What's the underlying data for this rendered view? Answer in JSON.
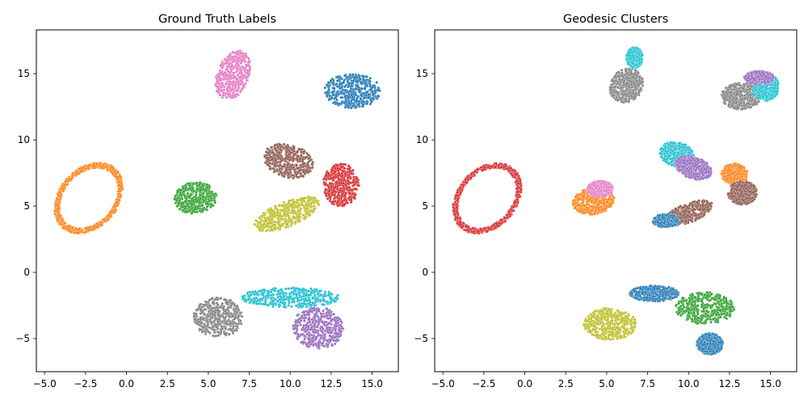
{
  "chart_data": [
    {
      "type": "scatter",
      "title": "Ground Truth Labels",
      "xlabel": "",
      "ylabel": "",
      "xlim": [
        -5.5,
        16.6
      ],
      "ylim": [
        -7.5,
        18.3
      ],
      "xticks": [
        -5.0,
        -2.5,
        0.0,
        2.5,
        5.0,
        7.5,
        10.0,
        12.5,
        15.0
      ],
      "yticks": [
        -5,
        0,
        5,
        10,
        15
      ],
      "xtick_labels": [
        "−5.0",
        "−2.5",
        "0.0",
        "2.5",
        "5.0",
        "7.5",
        "10.0",
        "12.5",
        "15.0"
      ],
      "ytick_labels": [
        "−5",
        "0",
        "5",
        "10",
        "15"
      ],
      "grid": false,
      "legend": "none",
      "clusters": [
        {
          "shape": "ring",
          "cx": -2.3,
          "cy": 5.6,
          "rx": 1.9,
          "ry": 2.8,
          "angle": -25,
          "color": "#ff7f0e"
        },
        {
          "shape": "blob",
          "cx": 4.2,
          "cy": 5.6,
          "rx": 1.3,
          "ry": 1.2,
          "angle": 20,
          "color": "#2ca02c"
        },
        {
          "shape": "blob",
          "cx": 6.5,
          "cy": 14.9,
          "rx": 1.0,
          "ry": 1.9,
          "angle": -15,
          "color": "#e377c2"
        },
        {
          "shape": "blob",
          "cx": 13.8,
          "cy": 13.7,
          "rx": 1.7,
          "ry": 1.3,
          "angle": 0,
          "color": "#1f77b4"
        },
        {
          "shape": "blob",
          "cx": 9.9,
          "cy": 8.4,
          "rx": 1.6,
          "ry": 1.2,
          "angle": -30,
          "color": "#8c564b"
        },
        {
          "shape": "blob",
          "cx": 13.1,
          "cy": 6.6,
          "rx": 1.1,
          "ry": 1.6,
          "angle": 0,
          "color": "#d62728"
        },
        {
          "shape": "blob",
          "cx": 9.8,
          "cy": 4.4,
          "rx": 2.2,
          "ry": 0.9,
          "angle": 28,
          "color": "#bcbd22"
        },
        {
          "shape": "blob",
          "cx": 5.6,
          "cy": -3.4,
          "rx": 1.5,
          "ry": 1.5,
          "angle": 0,
          "color": "#7f7f7f"
        },
        {
          "shape": "blob",
          "cx": 10.0,
          "cy": -1.9,
          "rx": 3.0,
          "ry": 0.75,
          "angle": 0,
          "color": "#17becf"
        },
        {
          "shape": "blob",
          "cx": 11.7,
          "cy": -4.2,
          "rx": 1.5,
          "ry": 1.6,
          "angle": 30,
          "color": "#9467bd"
        }
      ]
    },
    {
      "type": "scatter",
      "title": "Geodesic Clusters",
      "xlabel": "",
      "ylabel": "",
      "xlim": [
        -5.5,
        16.6
      ],
      "ylim": [
        -7.5,
        18.3
      ],
      "xticks": [
        -5.0,
        -2.5,
        0.0,
        2.5,
        5.0,
        7.5,
        10.0,
        12.5,
        15.0
      ],
      "yticks": [
        -5,
        0,
        5,
        10,
        15
      ],
      "xtick_labels": [
        "−5.0",
        "−2.5",
        "0.0",
        "2.5",
        "5.0",
        "7.5",
        "10.0",
        "12.5",
        "15.0"
      ],
      "ytick_labels": [
        "−5",
        "0",
        "5",
        "10",
        "15"
      ],
      "grid": false,
      "legend": "none",
      "clusters": [
        {
          "shape": "ring",
          "cx": -2.3,
          "cy": 5.6,
          "rx": 1.9,
          "ry": 2.8,
          "angle": -25,
          "color": "#d62728"
        },
        {
          "shape": "blob",
          "cx": 4.2,
          "cy": 5.4,
          "rx": 1.3,
          "ry": 1.0,
          "angle": 20,
          "color": "#ff7f0e"
        },
        {
          "shape": "blob",
          "cx": 4.6,
          "cy": 6.3,
          "rx": 0.8,
          "ry": 0.6,
          "angle": 0,
          "color": "#e377c2"
        },
        {
          "shape": "blob",
          "cx": 6.2,
          "cy": 14.1,
          "rx": 1.0,
          "ry": 1.3,
          "angle": -15,
          "color": "#7f7f7f"
        },
        {
          "shape": "blob",
          "cx": 6.7,
          "cy": 16.2,
          "rx": 0.5,
          "ry": 0.8,
          "angle": 0,
          "color": "#17becf"
        },
        {
          "shape": "blob",
          "cx": 13.2,
          "cy": 13.3,
          "rx": 1.2,
          "ry": 1.0,
          "angle": 0,
          "color": "#7f7f7f"
        },
        {
          "shape": "blob",
          "cx": 14.7,
          "cy": 14.0,
          "rx": 0.8,
          "ry": 1.1,
          "angle": 0,
          "color": "#17becf"
        },
        {
          "shape": "blob",
          "cx": 14.3,
          "cy": 14.7,
          "rx": 0.9,
          "ry": 0.5,
          "angle": 0,
          "color": "#9467bd"
        },
        {
          "shape": "blob",
          "cx": 9.3,
          "cy": 8.9,
          "rx": 1.1,
          "ry": 0.9,
          "angle": -30,
          "color": "#17becf"
        },
        {
          "shape": "blob",
          "cx": 10.3,
          "cy": 7.9,
          "rx": 1.2,
          "ry": 0.8,
          "angle": -30,
          "color": "#9467bd"
        },
        {
          "shape": "blob",
          "cx": 12.8,
          "cy": 7.4,
          "rx": 0.8,
          "ry": 0.8,
          "angle": 0,
          "color": "#ff7f0e"
        },
        {
          "shape": "blob",
          "cx": 13.3,
          "cy": 6.0,
          "rx": 0.9,
          "ry": 0.9,
          "angle": 0,
          "color": "#8c564b"
        },
        {
          "shape": "blob",
          "cx": 10.0,
          "cy": 4.5,
          "rx": 1.6,
          "ry": 0.7,
          "angle": 28,
          "color": "#8c564b"
        },
        {
          "shape": "blob",
          "cx": 8.6,
          "cy": 3.9,
          "rx": 0.8,
          "ry": 0.5,
          "angle": 0,
          "color": "#1f77b4"
        },
        {
          "shape": "blob",
          "cx": 5.2,
          "cy": -3.9,
          "rx": 1.6,
          "ry": 1.2,
          "angle": 0,
          "color": "#bcbd22"
        },
        {
          "shape": "blob",
          "cx": 7.9,
          "cy": -1.6,
          "rx": 1.5,
          "ry": 0.6,
          "angle": 0,
          "color": "#1f77b4"
        },
        {
          "shape": "blob",
          "cx": 11.0,
          "cy": -2.7,
          "rx": 1.8,
          "ry": 1.2,
          "angle": 0,
          "color": "#2ca02c"
        },
        {
          "shape": "blob",
          "cx": 11.3,
          "cy": -5.4,
          "rx": 0.8,
          "ry": 0.8,
          "angle": 0,
          "color": "#1f77b4"
        }
      ]
    }
  ]
}
